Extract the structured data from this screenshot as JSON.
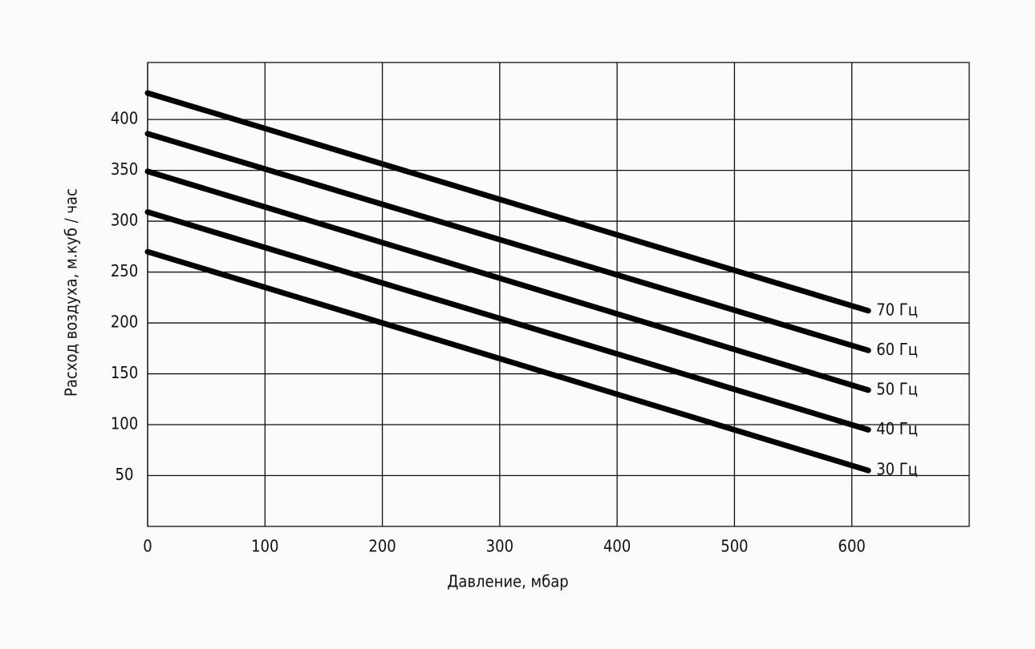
{
  "chart_data": {
    "type": "line",
    "xlabel": "Давление, мбар",
    "ylabel": "Расход воздуха, м.куб / час",
    "x": [
      0,
      614
    ],
    "series": [
      {
        "name": "70 Гц",
        "color": "#000000",
        "values": [
          426,
          212
        ]
      },
      {
        "name": "60 Гц",
        "color": "#000000",
        "values": [
          386,
          173
        ]
      },
      {
        "name": "50 Гц",
        "color": "#000000",
        "values": [
          349,
          134
        ]
      },
      {
        "name": "40 Гц",
        "color": "#000000",
        "values": [
          309,
          95
        ]
      },
      {
        "name": "30 Гц",
        "color": "#000000",
        "values": [
          270,
          55
        ]
      }
    ],
    "xlim": [
      0,
      700
    ],
    "xticks": [
      0,
      100,
      200,
      300,
      400,
      500,
      600
    ],
    "ylim": [
      0,
      456
    ],
    "yticks": [
      50,
      100,
      150,
      200,
      250,
      300,
      350,
      400
    ],
    "grid": true
  }
}
